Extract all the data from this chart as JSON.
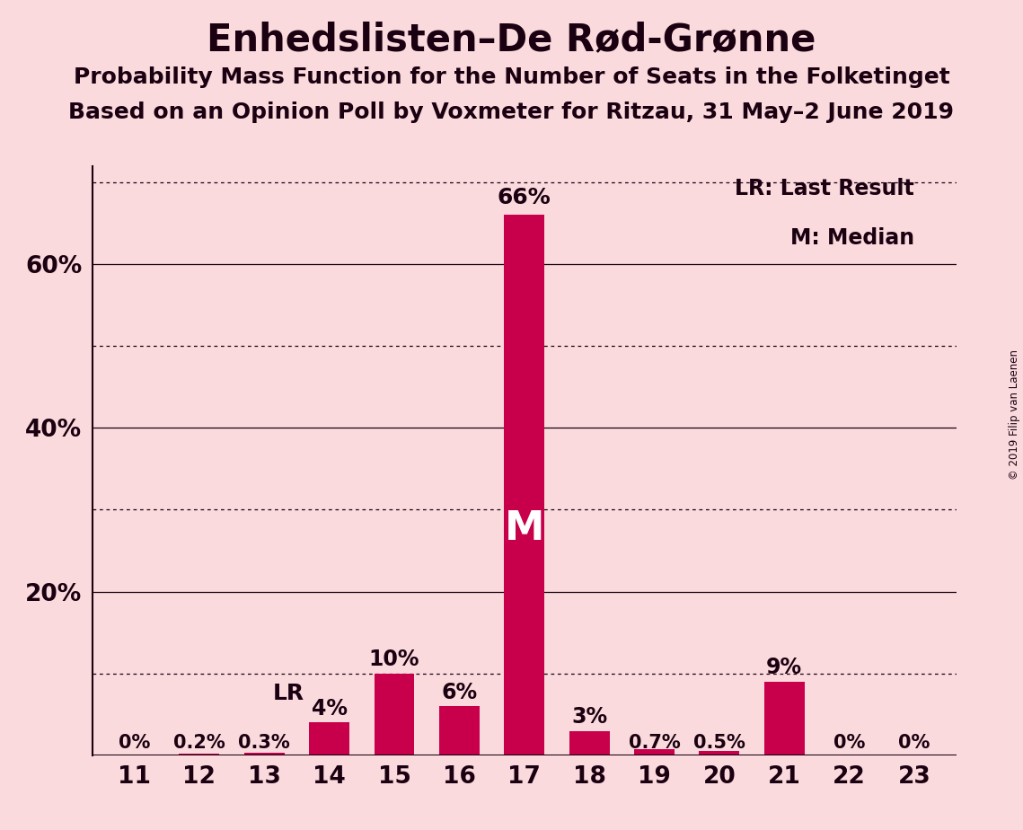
{
  "title": "Enhedslisten–De Rød-Grønne",
  "subtitle1": "Probability Mass Function for the Number of Seats in the Folketinget",
  "subtitle2": "Based on an Opinion Poll by Voxmeter for Ritzau, 31 May–2 June 2019",
  "copyright": "© 2019 Filip van Laenen",
  "seats": [
    11,
    12,
    13,
    14,
    15,
    16,
    17,
    18,
    19,
    20,
    21,
    22,
    23
  ],
  "probabilities": [
    0.0,
    0.2,
    0.3,
    4.0,
    10.0,
    6.0,
    66.0,
    3.0,
    0.7,
    0.5,
    9.0,
    0.0,
    0.0
  ],
  "labels": [
    "0%",
    "0.2%",
    "0.3%",
    "4%",
    "10%",
    "6%",
    "66%",
    "3%",
    "0.7%",
    "0.5%",
    "9%",
    "0%",
    "0%"
  ],
  "bar_color": "#C8004B",
  "background_color": "#FADADD",
  "text_color": "#1a0010",
  "median_seat": 17,
  "lr_seat": 14,
  "ylim": [
    0,
    72
  ],
  "ytick_positions": [
    20,
    40,
    60
  ],
  "ytick_labels": [
    "20%",
    "40%",
    "60%"
  ],
  "solid_gridlines": [
    20,
    40,
    60
  ],
  "dotted_gridlines": [
    10,
    30,
    50,
    70
  ],
  "legend_lr": "LR: Last Result",
  "legend_m": "M: Median"
}
